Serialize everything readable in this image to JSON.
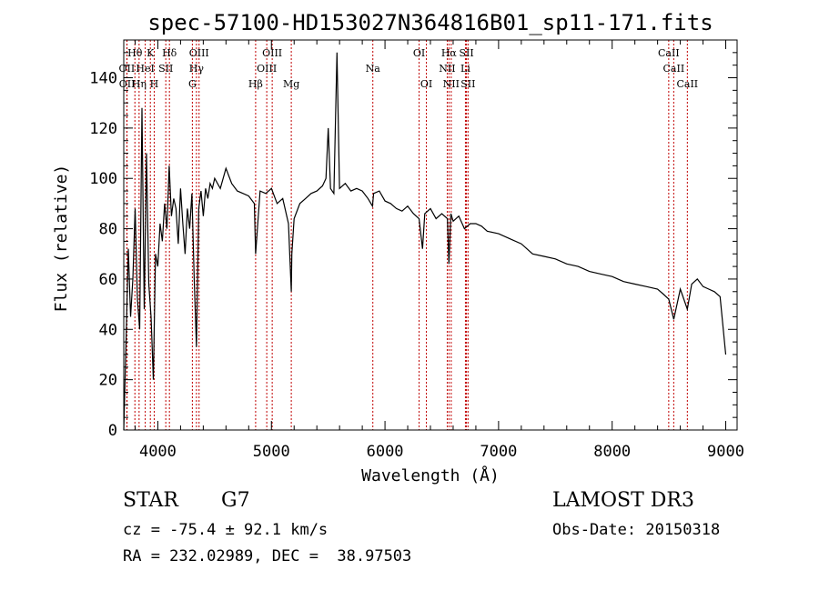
{
  "chart_data": {
    "type": "line",
    "title": "spec-57100-HD153027N364816B01_sp11-171.fits",
    "xlabel": "Wavelength (Å)",
    "ylabel": "Flux (relative)",
    "xlim": [
      3700,
      9100
    ],
    "ylim": [
      0,
      155
    ],
    "xticks": [
      4000,
      5000,
      6000,
      7000,
      8000,
      9000
    ],
    "yticks": [
      0,
      20,
      40,
      60,
      80,
      100,
      120,
      140
    ],
    "line_color": "#000000",
    "marker_color": "#c00000",
    "series": [
      {
        "name": "spectrum",
        "x": [
          3700,
          3720,
          3740,
          3760,
          3780,
          3800,
          3820,
          3840,
          3860,
          3880,
          3900,
          3920,
          3940,
          3960,
          3980,
          4000,
          4020,
          4040,
          4060,
          4080,
          4100,
          4120,
          4140,
          4160,
          4180,
          4200,
          4220,
          4240,
          4260,
          4280,
          4300,
          4320,
          4340,
          4360,
          4380,
          4400,
          4420,
          4440,
          4460,
          4480,
          4500,
          4550,
          4600,
          4650,
          4700,
          4750,
          4800,
          4850,
          4861,
          4900,
          4950,
          5000,
          5050,
          5100,
          5150,
          5175,
          5180,
          5200,
          5250,
          5300,
          5350,
          5400,
          5450,
          5480,
          5500,
          5520,
          5550,
          5577,
          5600,
          5650,
          5700,
          5750,
          5800,
          5850,
          5890,
          5900,
          5950,
          6000,
          6050,
          6100,
          6150,
          6200,
          6250,
          6300,
          6330,
          6350,
          6400,
          6450,
          6500,
          6550,
          6563,
          6580,
          6600,
          6650,
          6700,
          6750,
          6800,
          6850,
          6900,
          7000,
          7100,
          7200,
          7300,
          7400,
          7500,
          7600,
          7700,
          7800,
          7900,
          8000,
          8100,
          8200,
          8300,
          8400,
          8450,
          8498,
          8542,
          8600,
          8662,
          8700,
          8750,
          8800,
          8850,
          8900,
          8950,
          9000
        ],
        "y": [
          0,
          35,
          72,
          45,
          60,
          88,
          52,
          40,
          128,
          48,
          110,
          58,
          45,
          20,
          70,
          65,
          82,
          75,
          90,
          80,
          105,
          85,
          92,
          88,
          74,
          96,
          82,
          70,
          88,
          80,
          94,
          60,
          33,
          88,
          95,
          85,
          96,
          92,
          98,
          96,
          100,
          96,
          104,
          98,
          95,
          94,
          93,
          90,
          70,
          95,
          94,
          96,
          90,
          92,
          82,
          55,
          70,
          84,
          90,
          92,
          94,
          95,
          97,
          100,
          120,
          96,
          94,
          150,
          96,
          98,
          95,
          96,
          95,
          92,
          89,
          94,
          95,
          91,
          90,
          88,
          87,
          89,
          86,
          84,
          72,
          86,
          88,
          84,
          86,
          84,
          66,
          86,
          83,
          85,
          80,
          82,
          82,
          81,
          79,
          78,
          76,
          74,
          70,
          69,
          68,
          66,
          65,
          63,
          62,
          61,
          59,
          58,
          57,
          56,
          54,
          52,
          44,
          56,
          48,
          58,
          60,
          57,
          56,
          55,
          53,
          30
        ]
      }
    ],
    "lines": [
      {
        "label": "Hθ",
        "wl": 3798,
        "row": 1
      },
      {
        "label": "K",
        "wl": 3934,
        "row": 1
      },
      {
        "label": "Hδ",
        "wl": 4102,
        "row": 1
      },
      {
        "label": "OIII",
        "wl": 4363,
        "row": 1
      },
      {
        "label": "OIII",
        "wl": 5007,
        "row": 1
      },
      {
        "label": "OI",
        "wl": 6300,
        "row": 1
      },
      {
        "label": "Hα",
        "wl": 6563,
        "row": 1
      },
      {
        "label": "SII",
        "wl": 6717,
        "row": 1
      },
      {
        "label": "CaII",
        "wl": 8498,
        "row": 1
      },
      {
        "label": "OII",
        "wl": 3727,
        "row": 2
      },
      {
        "label": "HeI",
        "wl": 3889,
        "row": 2
      },
      {
        "label": "SII",
        "wl": 4070,
        "row": 2
      },
      {
        "label": "Hγ",
        "wl": 4340,
        "row": 2
      },
      {
        "label": "OIII",
        "wl": 4959,
        "row": 2
      },
      {
        "label": "Na",
        "wl": 5893,
        "row": 2
      },
      {
        "label": "NII",
        "wl": 6548,
        "row": 2
      },
      {
        "label": "Li",
        "wl": 6708,
        "row": 2
      },
      {
        "label": "CaII",
        "wl": 8542,
        "row": 2
      },
      {
        "label": "OII",
        "wl": 3729,
        "row": 3
      },
      {
        "label": "Hη",
        "wl": 3835,
        "row": 3
      },
      {
        "label": "H",
        "wl": 3968,
        "row": 3
      },
      {
        "label": "G",
        "wl": 4304,
        "row": 3
      },
      {
        "label": "Hβ",
        "wl": 4861,
        "row": 3
      },
      {
        "label": "Mg",
        "wl": 5175,
        "row": 3
      },
      {
        "label": "OI",
        "wl": 6364,
        "row": 3
      },
      {
        "label": "NII",
        "wl": 6583,
        "row": 3
      },
      {
        "label": "SII",
        "wl": 6731,
        "row": 3
      },
      {
        "label": "CaII",
        "wl": 8662,
        "row": 3
      }
    ]
  },
  "info": {
    "object_class": "STAR",
    "subclass": "G7",
    "survey": "LAMOST DR3",
    "cz": "cz = -75.4 ± 92.1 km/s",
    "obs_date": "Obs-Date: 20150318",
    "coords": "RA = 232.02989, DEC =  38.97503"
  }
}
